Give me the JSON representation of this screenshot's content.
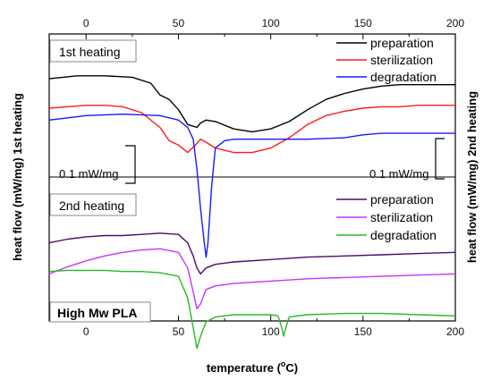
{
  "chart_data": {
    "type": "line",
    "xlabel": "temperature (",
    "xlabel_sup": "o",
    "xlabel_unit": "C)",
    "ylabel_left": "heat flow (mW/mg) 1st heating",
    "ylabel_right": "heat flow (mW/mg) 2nd heating",
    "xlim": [
      -20,
      200
    ],
    "x_ticks": [
      0,
      50,
      100,
      150,
      200
    ],
    "x_tick_labels": [
      "0",
      "50",
      "100",
      "150",
      "200"
    ],
    "panels": [
      {
        "label": "1st heating",
        "scale_label": "0.1 mW/mg",
        "legend": [
          "preparation",
          "sterilization",
          "degradation"
        ],
        "series": [
          {
            "name": "preparation",
            "color": "#000000",
            "x": [
              -20,
              -5,
              10,
              25,
              35,
              40,
              45,
              50,
              55,
              60,
              62,
              65,
              70,
              80,
              90,
              100,
              110,
              120,
              130,
              140,
              150,
              160,
              170,
              180,
              190,
              200
            ],
            "y": [
              0.83,
              0.85,
              0.85,
              0.84,
              0.8,
              0.72,
              0.69,
              0.62,
              0.52,
              0.5,
              0.53,
              0.55,
              0.54,
              0.49,
              0.47,
              0.49,
              0.54,
              0.62,
              0.69,
              0.73,
              0.76,
              0.78,
              0.79,
              0.79,
              0.79,
              0.79
            ]
          },
          {
            "name": "sterilization",
            "color": "#ff1a1a",
            "x": [
              -20,
              -10,
              0,
              10,
              20,
              30,
              40,
              45,
              50,
              55,
              60,
              62,
              65,
              70,
              80,
              90,
              100,
              110,
              120,
              130,
              140,
              150,
              160,
              170,
              180,
              190,
              200
            ],
            "y": [
              0.63,
              0.64,
              0.65,
              0.65,
              0.64,
              0.6,
              0.5,
              0.41,
              0.38,
              0.33,
              0.39,
              0.42,
              0.4,
              0.36,
              0.33,
              0.33,
              0.36,
              0.43,
              0.52,
              0.58,
              0.61,
              0.63,
              0.64,
              0.64,
              0.65,
              0.65,
              0.65
            ]
          },
          {
            "name": "degradation",
            "color": "#1a1aff",
            "x": [
              -20,
              0,
              20,
              40,
              50,
              55,
              58,
              60,
              62,
              64,
              65,
              66,
              68,
              70,
              75,
              80,
              100,
              120,
              140,
              150,
              160,
              180,
              200
            ],
            "y": [
              0.55,
              0.58,
              0.59,
              0.58,
              0.55,
              0.5,
              0.42,
              0.22,
              -0.05,
              -0.28,
              -0.38,
              -0.28,
              0.1,
              0.36,
              0.41,
              0.42,
              0.42,
              0.42,
              0.43,
              0.45,
              0.46,
              0.46,
              0.46
            ]
          }
        ]
      },
      {
        "label": "2nd heating",
        "legend": [
          "preparation",
          "sterilization",
          "degradation"
        ],
        "series": [
          {
            "name": "preparation",
            "color": "#4b0a6e",
            "x": [
              -20,
              -10,
              0,
              10,
              20,
              30,
              40,
              50,
              55,
              58,
              60,
              62,
              65,
              70,
              80,
              100,
              120,
              140,
              160,
              180,
              200
            ],
            "y": [
              0.66,
              0.69,
              0.71,
              0.72,
              0.72,
              0.73,
              0.74,
              0.73,
              0.66,
              0.55,
              0.45,
              0.4,
              0.45,
              0.48,
              0.5,
              0.52,
              0.54,
              0.55,
              0.56,
              0.57,
              0.58
            ]
          },
          {
            "name": "sterilization",
            "color": "#c832ff",
            "x": [
              -20,
              -10,
              0,
              10,
              20,
              30,
              40,
              50,
              55,
              58,
              60,
              62,
              65,
              70,
              80,
              100,
              120,
              140,
              160,
              180,
              200
            ],
            "y": [
              0.4,
              0.46,
              0.51,
              0.55,
              0.58,
              0.6,
              0.61,
              0.58,
              0.45,
              0.25,
              0.11,
              0.15,
              0.27,
              0.3,
              0.32,
              0.34,
              0.36,
              0.37,
              0.38,
              0.39,
              0.4
            ]
          },
          {
            "name": "degradation",
            "color": "#22bb22",
            "x": [
              -20,
              -10,
              0,
              10,
              20,
              30,
              40,
              50,
              55,
              58,
              60,
              62,
              65,
              70,
              80,
              90,
              100,
              104,
              106,
              107,
              108,
              110,
              120,
              140,
              160,
              180,
              200
            ],
            "y": [
              0.42,
              0.43,
              0.43,
              0.43,
              0.42,
              0.42,
              0.41,
              0.38,
              0.2,
              -0.05,
              -0.22,
              -0.12,
              0.0,
              0.04,
              0.06,
              0.06,
              0.06,
              0.05,
              -0.05,
              -0.12,
              -0.06,
              0.04,
              0.06,
              0.07,
              0.07,
              0.06,
              0.05
            ]
          }
        ]
      }
    ],
    "annotation": "High Mw PLA",
    "grid": false
  }
}
